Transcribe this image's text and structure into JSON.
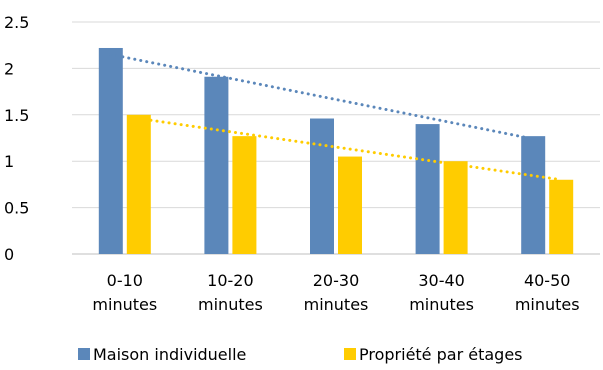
{
  "chart_data": {
    "type": "bar",
    "title": "",
    "xlabel": "",
    "ylabel": "",
    "categories": [
      [
        "0-10",
        "minutes"
      ],
      [
        "10-20",
        "minutes"
      ],
      [
        "20-30",
        "minutes"
      ],
      [
        "30-40",
        "minutes"
      ],
      [
        "40-50",
        "minutes"
      ]
    ],
    "ylim": [
      0,
      2.5
    ],
    "yticks": [
      "0",
      "0.5",
      "1",
      "1.5",
      "2",
      "2.5"
    ],
    "grid": true,
    "legend_position": "bottom",
    "series": [
      {
        "name": "Maison individuelle",
        "values": [
          2.22,
          1.91,
          1.46,
          1.4,
          1.27
        ],
        "color": "#5b87ba",
        "trendline": [
          2.15,
          1.24
        ]
      },
      {
        "name": "Propriété par étages",
        "values": [
          1.5,
          1.27,
          1.05,
          1.0,
          0.8
        ],
        "color": "#ffcc00",
        "trendline": [
          1.46,
          0.8
        ]
      }
    ]
  }
}
